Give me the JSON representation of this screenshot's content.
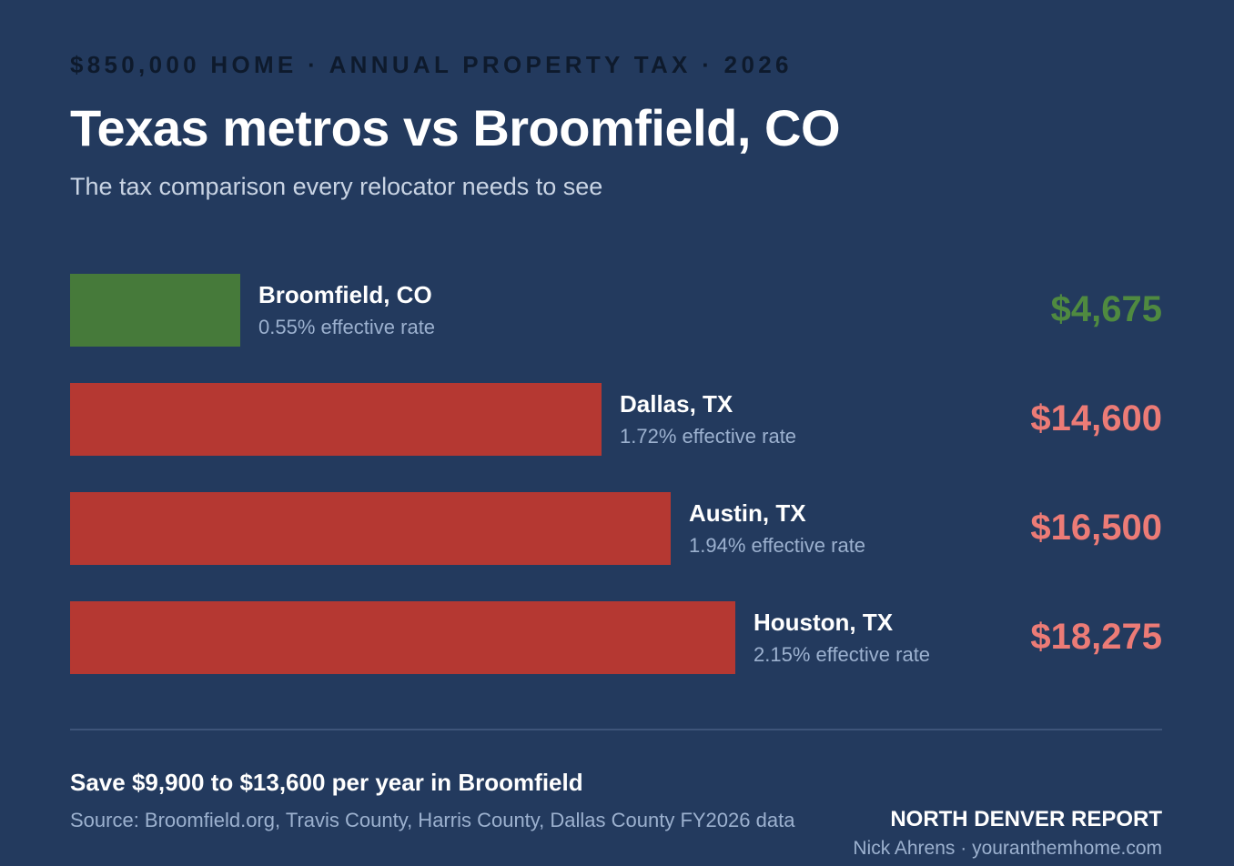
{
  "header": {
    "eyebrow": "$850,000 HOME · ANNUAL PROPERTY TAX · 2026",
    "title": "Texas metros vs Broomfield, CO",
    "subtitle": "The tax comparison every relocator needs to see"
  },
  "chart_data": {
    "type": "bar",
    "orientation": "horizontal",
    "categories": [
      "Broomfield, CO",
      "Dallas, TX",
      "Austin, TX",
      "Houston, TX"
    ],
    "rate_labels": [
      "0.55% effective rate",
      "1.72% effective rate",
      "1.94% effective rate",
      "2.15% effective rate"
    ],
    "values": [
      4675,
      14600,
      16500,
      18275
    ],
    "value_labels": [
      "$4,675",
      "$14,600",
      "$16,500",
      "$18,275"
    ],
    "bar_colors": [
      "#467a3a",
      "#b53832",
      "#b53832",
      "#b53832"
    ],
    "value_colors": [
      "#4f8a40",
      "#ec7b76",
      "#ec7b76",
      "#ec7b76"
    ],
    "title": "Texas metros vs Broomfield, CO",
    "xlabel": "",
    "ylabel": "",
    "xlim": [
      0,
      30000
    ],
    "grid": false,
    "legend": "none"
  },
  "footer": {
    "callout": "Save $9,900 to $13,600 per year in Broomfield",
    "source": "Source: Broomfield.org, Travis County, Harris County, Dallas County FY2026 data",
    "brand": "NORTH DENVER REPORT",
    "byline": "Nick Ahrens · youranthemhome.com"
  },
  "colors": {
    "background": "#233a5e",
    "savings_green": "#467a3a",
    "tax_red": "#b53832"
  }
}
